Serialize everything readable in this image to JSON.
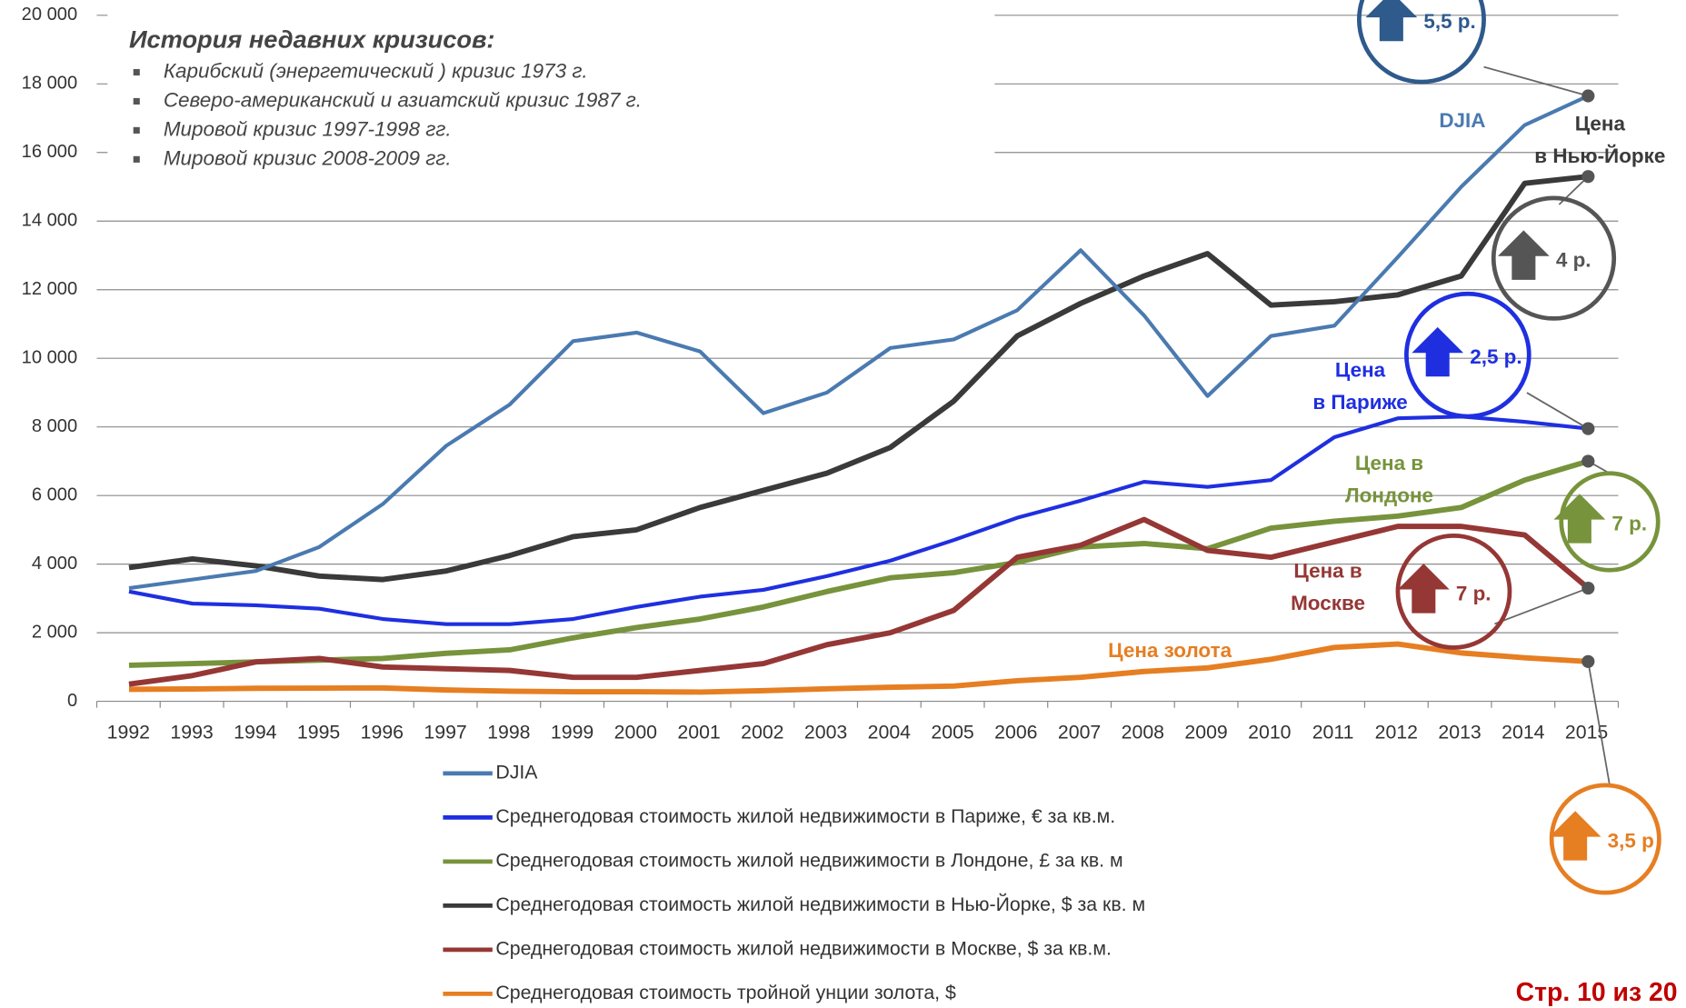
{
  "chart_data": {
    "type": "line",
    "categories": [
      "1992",
      "1993",
      "1994",
      "1995",
      "1996",
      "1997",
      "1998",
      "1999",
      "2000",
      "2001",
      "2002",
      "2003",
      "2004",
      "2005",
      "2006",
      "2007",
      "2008",
      "2009",
      "2010",
      "2011",
      "2012",
      "2013",
      "2014",
      "2015"
    ],
    "ylim": [
      0,
      20000
    ],
    "yticks": [
      0,
      {
        "value": 2000,
        "label": "2 000"
      },
      {
        "value": 4000,
        "label": "4 000"
      },
      {
        "value": 6000,
        "label": "6 000"
      },
      {
        "value": 8000,
        "label": "8 000"
      },
      {
        "value": 10000,
        "label": "10 000"
      },
      {
        "value": 12000,
        "label": "12 000"
      },
      {
        "value": 14000,
        "label": "14 000"
      },
      {
        "value": 16000,
        "label": "16 000"
      },
      {
        "value": 18000,
        "label": "18 000"
      },
      {
        "value": 20000,
        "label": "20 000"
      }
    ],
    "grid": true,
    "series": [
      {
        "name": "DJIA",
        "color": "#4a7ab0",
        "values": [
          3300,
          3550,
          3800,
          4500,
          5750,
          7450,
          8650,
          10500,
          10750,
          10200,
          8400,
          9000,
          10300,
          10550,
          11400,
          13150,
          11250,
          8900,
          10650,
          10950,
          12950,
          15000,
          16800,
          17650
        ]
      },
      {
        "name": "Среднегодовая стоимость жилой недвижимости в Париже, € за кв.м.",
        "color": "#1f2fe0",
        "values": [
          3200,
          2850,
          2800,
          2700,
          2400,
          2250,
          2250,
          2400,
          2750,
          3050,
          3250,
          3650,
          4100,
          4700,
          5350,
          5850,
          6400,
          6250,
          6450,
          7700,
          8250,
          8300,
          8150,
          7950
        ]
      },
      {
        "name": "Среднегодовая стоимость жилой недвижимости в Лондоне, £ за кв. м",
        "color": "#77933c",
        "values": [
          1050,
          1100,
          1150,
          1200,
          1250,
          1400,
          1500,
          1850,
          2150,
          2400,
          2750,
          3200,
          3600,
          3750,
          4050,
          4500,
          4600,
          4450,
          5050,
          5250,
          5400,
          5650,
          6450,
          7000
        ]
      },
      {
        "name": "Среднегодовая стоимость жилой недвижимости в Нью-Йорке, $ за кв. м",
        "color": "#3a3a3a",
        "values": [
          3900,
          4150,
          3950,
          3650,
          3550,
          3800,
          4250,
          4800,
          5000,
          5650,
          6150,
          6650,
          7400,
          8750,
          10650,
          11600,
          12400,
          13050,
          11550,
          11650,
          11850,
          12400,
          15100,
          15300
        ]
      },
      {
        "name": "Среднегодовая стоимость жилой недвижимости в Москве, $ за кв.м.",
        "color": "#953735",
        "values": [
          500,
          750,
          1150,
          1250,
          1000,
          950,
          900,
          700,
          700,
          900,
          1100,
          1650,
          2000,
          2650,
          4200,
          4550,
          5300,
          4400,
          4200,
          4650,
          5100,
          5100,
          4850,
          3300
        ]
      },
      {
        "name": "Среднегодовая стоимость тройной унции золота, $",
        "color": "#e67e22",
        "values": [
          350,
          360,
          380,
          385,
          390,
          330,
          295,
          280,
          280,
          270,
          310,
          365,
          410,
          445,
          600,
          700,
          870,
          975,
          1225,
          1570,
          1670,
          1410,
          1270,
          1160
        ]
      }
    ],
    "crisis_title": "История недавних кризисов:",
    "crisis_list": [
      "Карибский (энергетический ) кризис 1973 г.",
      "Северо-американский и азиатский кризис 1987 г.",
      "Мировой кризис 1997-1998 гг.",
      "Мировой кризис 2008-2009 гг."
    ],
    "series_labels": [
      [
        "DJIA"
      ],
      [
        "Цена",
        "в Париже"
      ],
      [
        "Цена в",
        "Лондоне"
      ],
      [
        "Цена",
        "в Нью-Йорке"
      ],
      [
        "Цена в",
        "Москве"
      ],
      [
        "Цена золота"
      ]
    ],
    "badges": [
      "5,5 р.",
      "2,5 р.",
      "7 р.",
      "4 р.",
      "7 р.",
      "3,5 р"
    ],
    "page_number": "Стр. 10 из 20"
  }
}
